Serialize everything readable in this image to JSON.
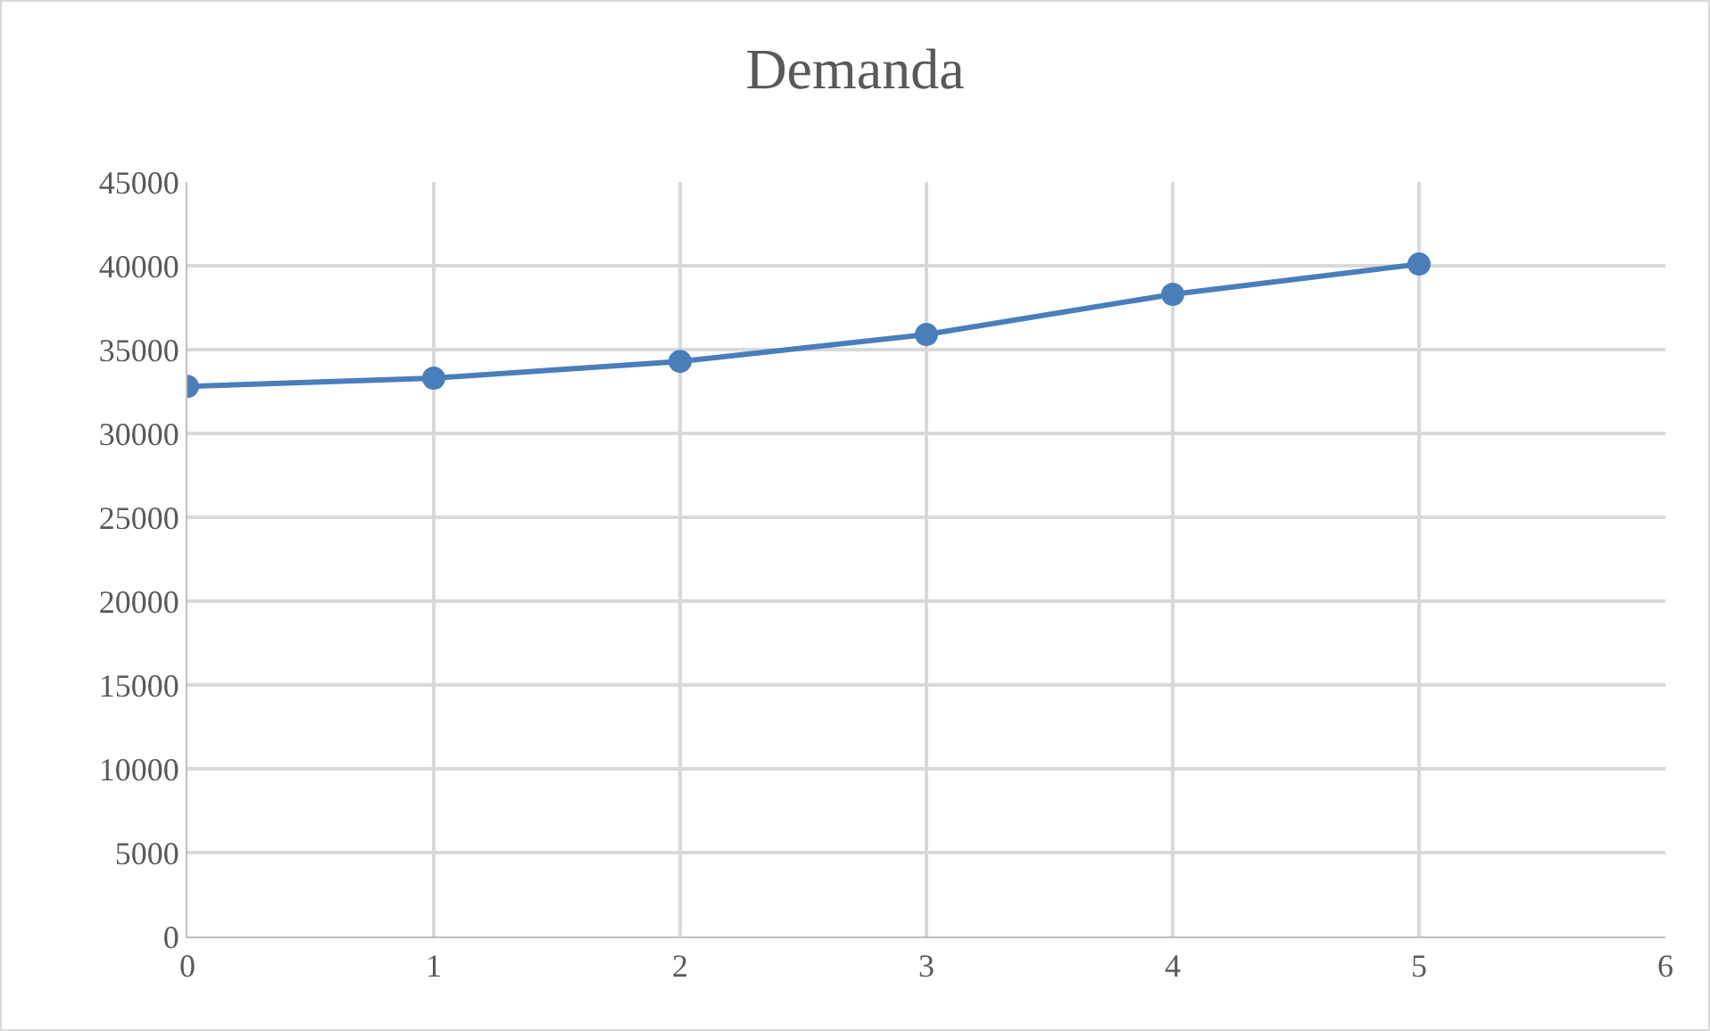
{
  "chart_data": {
    "type": "line",
    "title": "Demanda",
    "x": [
      0,
      1,
      2,
      3,
      4,
      5
    ],
    "series": [
      {
        "color": "#4a7ebb",
        "values": [
          32800,
          33300,
          34300,
          35900,
          38300,
          40100
        ]
      }
    ],
    "xlim": [
      0,
      6
    ],
    "xticks": [
      0,
      1,
      2,
      3,
      4,
      5,
      6
    ],
    "ylim": [
      0,
      45000
    ],
    "yticks": [
      0,
      5000,
      10000,
      15000,
      20000,
      25000,
      30000,
      35000,
      40000,
      45000
    ],
    "grid": true,
    "legend": false,
    "marker": "circle",
    "line_style": "solid"
  }
}
